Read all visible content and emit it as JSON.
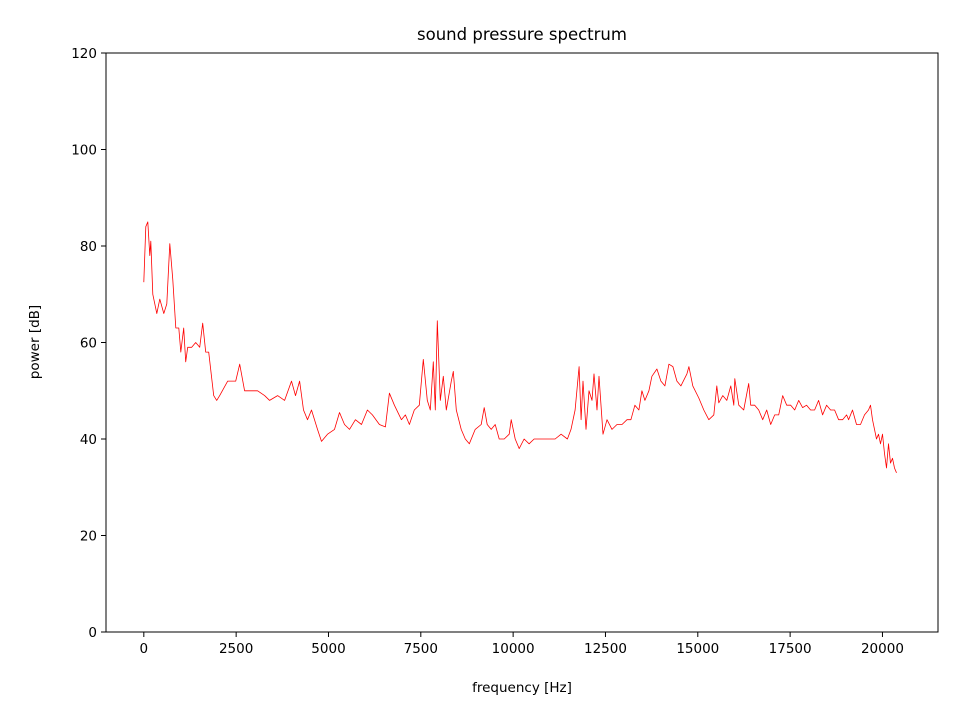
{
  "chart_data": {
    "type": "line",
    "title": "sound pressure spectrum",
    "xlabel": "frequency [Hz]",
    "ylabel": "power [dB]",
    "xlim": [
      -1024,
      21504
    ],
    "ylim": [
      0,
      120
    ],
    "xticks": [
      0,
      2500,
      5000,
      7500,
      10000,
      12500,
      15000,
      17500,
      20000
    ],
    "yticks": [
      0,
      20,
      40,
      60,
      80,
      100,
      120
    ],
    "grid": false,
    "line_color": "#ff0000",
    "series": [
      {
        "x": [
          0,
          54,
          108,
          162,
          189,
          243,
          351,
          432,
          541,
          622,
          703,
          784,
          865,
          946,
          1000,
          1081,
          1135,
          1189,
          1297,
          1406,
          1514,
          1595,
          1676,
          1757,
          1892,
          1973,
          2054,
          2270,
          2487,
          2595,
          2730,
          2865,
          3081,
          3271,
          3406,
          3622,
          3811,
          4000,
          4108,
          4217,
          4325,
          4433,
          4541,
          4703,
          4811,
          4974,
          5162,
          5298,
          5433,
          5568,
          5730,
          5893,
          6055,
          6190,
          6379,
          6541,
          6649,
          6784,
          6974,
          7082,
          7190,
          7325,
          7460,
          7568,
          7677,
          7757,
          7839,
          7893,
          7947,
          8028,
          8109,
          8190,
          8325,
          8379,
          8460,
          8595,
          8704,
          8812,
          8974,
          9136,
          9217,
          9298,
          9406,
          9515,
          9623,
          9758,
          9893,
          9947,
          10055,
          10163,
          10298,
          10433,
          10568,
          10704,
          10920,
          11136,
          11298,
          11468,
          11568,
          11677,
          11785,
          11839,
          11893,
          11974,
          12055,
          12136,
          12190,
          12271,
          12325,
          12434,
          12542,
          12677,
          12812,
          12947,
          13082,
          13190,
          13298,
          13406,
          13487,
          13568,
          13676,
          13758,
          13893,
          14001,
          14109,
          14217,
          14325,
          14434,
          14542,
          14704,
          14758,
          14866,
          15028,
          15163,
          15298,
          15433,
          15514,
          15568,
          15677,
          15785,
          15893,
          15974,
          16001,
          16109,
          16244,
          16379,
          16433,
          16541,
          16650,
          16758,
          16866,
          16974,
          17082,
          17190,
          17298,
          17406,
          17515,
          17623,
          17731,
          17839,
          17947,
          18055,
          18163,
          18271,
          18379,
          18487,
          18595,
          18704,
          18812,
          18920,
          19028,
          19082,
          19190,
          19298,
          19406,
          19515,
          19623,
          19677,
          19731,
          19839,
          19893,
          19947,
          20001,
          20055,
          20109,
          20163,
          20217,
          20271,
          20325,
          20380
        ],
        "y": [
          72.5,
          84,
          85,
          78,
          81,
          70,
          66,
          69,
          66,
          68,
          80.5,
          73,
          63,
          63,
          58,
          63,
          56,
          59,
          59,
          60,
          59,
          64,
          58,
          58,
          49,
          48,
          49,
          52,
          52,
          55.5,
          50,
          50,
          50,
          49,
          48,
          49,
          48,
          52,
          49,
          52,
          46,
          44,
          46,
          42,
          39.5,
          41,
          42,
          45.5,
          43,
          42,
          44,
          43,
          46,
          45,
          43,
          42.5,
          49.5,
          47,
          44,
          45,
          43,
          46,
          47,
          56.5,
          48,
          46,
          56,
          46,
          64.5,
          48,
          53,
          46,
          52,
          54,
          46,
          42,
          40,
          39,
          42,
          43,
          46.5,
          43,
          42,
          43,
          40,
          40,
          41,
          44,
          40,
          38,
          40,
          39,
          40,
          40,
          40,
          40,
          41,
          40,
          42,
          46,
          55,
          44,
          52,
          42,
          50,
          48,
          53.5,
          46,
          53,
          41,
          44,
          42,
          43,
          43,
          44,
          44,
          47,
          46,
          50,
          48,
          50,
          53,
          54.5,
          52,
          51,
          55.5,
          55,
          52,
          51,
          53.5,
          55,
          51,
          48.5,
          46,
          44,
          45,
          51,
          47.5,
          49,
          48,
          51,
          47,
          52.5,
          47,
          46,
          51.5,
          47,
          47,
          46,
          44,
          46,
          43,
          45,
          45,
          49,
          47,
          47,
          46,
          48,
          46.5,
          47,
          46,
          46,
          48,
          45,
          47,
          46,
          46,
          44,
          44,
          45,
          44,
          46,
          43,
          43,
          45,
          46,
          47,
          44,
          40,
          41,
          39,
          41,
          37,
          34,
          39,
          35,
          36,
          34,
          33
        ]
      }
    ]
  }
}
